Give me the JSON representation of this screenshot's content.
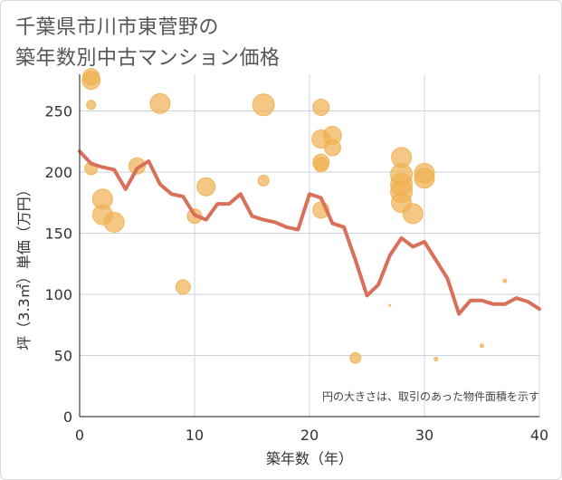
{
  "title_lines": [
    "千葉県市川市東菅野の",
    "築年数別中古マンション価格"
  ],
  "chart_data": {
    "type": "scatter",
    "xlabel": "築年数（年）",
    "ylabel": "坪（3.3㎡）単価（万円）",
    "xlim": [
      0,
      40
    ],
    "ylim": [
      0,
      280
    ],
    "xticks": [
      0,
      10,
      20,
      30,
      40
    ],
    "yticks": [
      0,
      50,
      100,
      150,
      200,
      250
    ],
    "grid": true,
    "annotation": "円の大きさは、取引のあった物件面積を示す",
    "colors": {
      "bubble": "#f0b050",
      "line": "#d9705a",
      "grid": "#c8d4de"
    },
    "bubbles": [
      {
        "x": 1,
        "y": 278,
        "size": 9
      },
      {
        "x": 1,
        "y": 275,
        "size": 10
      },
      {
        "x": 1,
        "y": 255,
        "size": 5
      },
      {
        "x": 1,
        "y": 203,
        "size": 7
      },
      {
        "x": 2,
        "y": 178,
        "size": 11
      },
      {
        "x": 2,
        "y": 165,
        "size": 11
      },
      {
        "x": 3,
        "y": 159,
        "size": 11
      },
      {
        "x": 5,
        "y": 205,
        "size": 9
      },
      {
        "x": 7,
        "y": 256,
        "size": 11
      },
      {
        "x": 9,
        "y": 106,
        "size": 8
      },
      {
        "x": 10,
        "y": 164,
        "size": 8
      },
      {
        "x": 11,
        "y": 188,
        "size": 10
      },
      {
        "x": 16,
        "y": 255,
        "size": 12
      },
      {
        "x": 16,
        "y": 193,
        "size": 6
      },
      {
        "x": 21,
        "y": 253,
        "size": 9
      },
      {
        "x": 21,
        "y": 227,
        "size": 10
      },
      {
        "x": 21,
        "y": 208,
        "size": 9
      },
      {
        "x": 21,
        "y": 206,
        "size": 8
      },
      {
        "x": 21,
        "y": 169,
        "size": 9
      },
      {
        "x": 22,
        "y": 230,
        "size": 10
      },
      {
        "x": 22,
        "y": 220,
        "size": 9
      },
      {
        "x": 24,
        "y": 48,
        "size": 6
      },
      {
        "x": 27,
        "y": 91,
        "size": 1
      },
      {
        "x": 28,
        "y": 212,
        "size": 11
      },
      {
        "x": 28,
        "y": 198,
        "size": 12
      },
      {
        "x": 28,
        "y": 190,
        "size": 12
      },
      {
        "x": 28,
        "y": 184,
        "size": 12
      },
      {
        "x": 28,
        "y": 175,
        "size": 11
      },
      {
        "x": 29,
        "y": 166,
        "size": 11
      },
      {
        "x": 30,
        "y": 199,
        "size": 11
      },
      {
        "x": 30,
        "y": 195,
        "size": 11
      },
      {
        "x": 31,
        "y": 47,
        "size": 2
      },
      {
        "x": 35,
        "y": 58,
        "size": 2
      },
      {
        "x": 37,
        "y": 111,
        "size": 2
      }
    ],
    "series": [
      {
        "x": [
          0,
          1,
          2,
          3,
          4,
          5,
          6,
          7,
          8,
          9,
          10,
          11,
          12,
          13,
          14,
          15,
          16,
          17,
          18,
          19,
          20,
          21,
          22,
          23,
          24,
          25,
          26,
          27,
          28,
          29,
          30,
          31,
          32,
          33,
          34,
          35,
          36,
          37,
          38,
          39,
          40
        ],
        "values": [
          217,
          207,
          204,
          202,
          186,
          203,
          209,
          190,
          182,
          180,
          165,
          161,
          174,
          174,
          182,
          164,
          161,
          159,
          155,
          153,
          182,
          179,
          158,
          155,
          128,
          99,
          108,
          132,
          146,
          139,
          143,
          128,
          113,
          84,
          95,
          95,
          92,
          92,
          97,
          94,
          88
        ]
      }
    ]
  }
}
